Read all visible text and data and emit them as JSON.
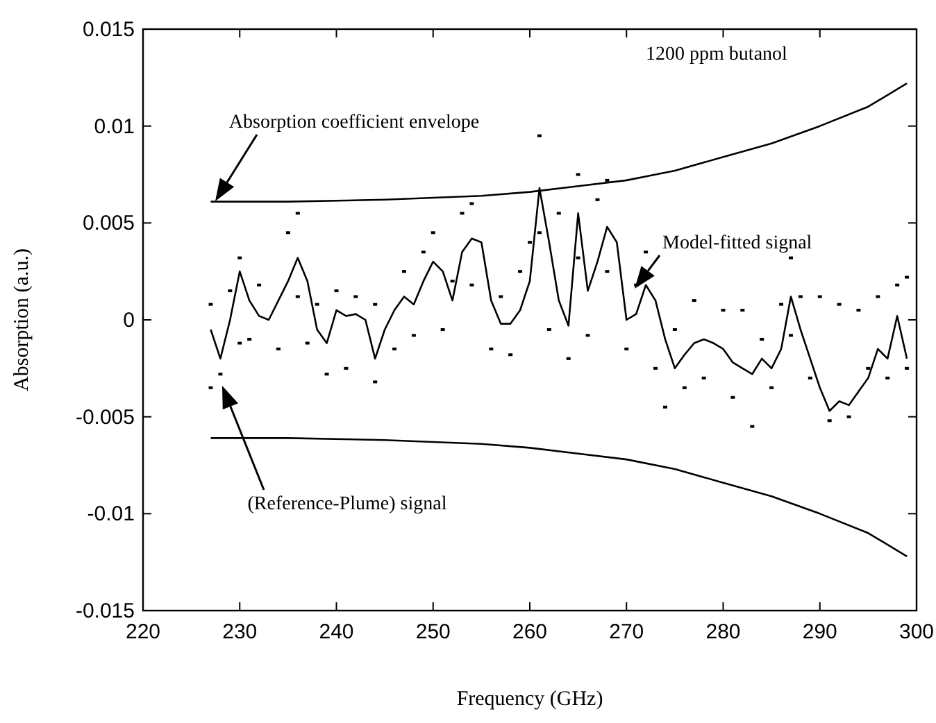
{
  "chart_data": {
    "type": "line",
    "xlabel": "Frequency (GHz)",
    "ylabel": "Absorption (a.u.)",
    "xlim": [
      220,
      300
    ],
    "xticks": [
      220,
      230,
      240,
      250,
      260,
      270,
      280,
      290,
      300
    ],
    "ylim": [
      -0.015,
      0.015
    ],
    "yticks": [
      -0.015,
      -0.01,
      -0.005,
      0,
      0.005,
      0.01,
      0.015
    ],
    "grid": false,
    "line_style": "solid",
    "marker": "none",
    "series": [
      {
        "color": "#000000",
        "x": [
          227,
          235,
          245,
          255,
          260,
          265,
          270,
          275,
          280,
          285,
          290,
          295,
          299
        ],
        "values": [
          0.0061,
          0.0061,
          0.0062,
          0.0064,
          0.0066,
          0.0069,
          0.0072,
          0.0077,
          0.0084,
          0.0091,
          0.01,
          0.011,
          0.0122
        ]
      },
      {
        "color": "#000000",
        "x": [
          227,
          235,
          245,
          255,
          260,
          265,
          270,
          275,
          280,
          285,
          290,
          295,
          299
        ],
        "values": [
          -0.0061,
          -0.0061,
          -0.0062,
          -0.0064,
          -0.0066,
          -0.0069,
          -0.0072,
          -0.0077,
          -0.0084,
          -0.0091,
          -0.01,
          -0.011,
          -0.0122
        ]
      },
      {
        "color": "#000000",
        "x": [
          227,
          228,
          229,
          230,
          231,
          232,
          233,
          234,
          235,
          236,
          237,
          238,
          239,
          240,
          241,
          242,
          243,
          244,
          245,
          246,
          247,
          248,
          249,
          250,
          251,
          252,
          253,
          254,
          255,
          256,
          257,
          258,
          259,
          260,
          261,
          262,
          263,
          264,
          265,
          266,
          267,
          268,
          269,
          270,
          271,
          272,
          273,
          274,
          275,
          276,
          277,
          278,
          279,
          280,
          281,
          282,
          283,
          284,
          285,
          286,
          287,
          288,
          289,
          290,
          291,
          292,
          293,
          294,
          295,
          296,
          297,
          298,
          299
        ],
        "values": [
          -0.0005,
          -0.002,
          0,
          0.0025,
          0.001,
          0.0002,
          0,
          0.001,
          0.002,
          0.0032,
          0.002,
          -0.0005,
          -0.0012,
          0.0005,
          0.0002,
          0.0003,
          0,
          -0.002,
          -0.0005,
          0.0005,
          0.0012,
          0.0008,
          0.002,
          0.003,
          0.0025,
          0.001,
          0.0035,
          0.0042,
          0.004,
          0.001,
          -0.0002,
          -0.0002,
          0.0005,
          0.002,
          0.0068,
          0.004,
          0.001,
          -0.0003,
          0.0055,
          0.0015,
          0.003,
          0.0048,
          0.004,
          0,
          0.0003,
          0.0018,
          0.001,
          -0.001,
          -0.0025,
          -0.0018,
          -0.0012,
          -0.001,
          -0.0012,
          -0.0015,
          -0.0022,
          -0.0025,
          -0.0028,
          -0.002,
          -0.0025,
          -0.0015,
          0.0012,
          -0.0005,
          -0.002,
          -0.0035,
          -0.0047,
          -0.0042,
          -0.0044,
          -0.0037,
          -0.003,
          -0.0015,
          -0.002,
          0.0002,
          -0.002
        ]
      },
      {
        "type": "scatter",
        "marker": "square",
        "color": "#000000",
        "x": [
          227,
          227,
          228,
          229,
          230,
          230,
          231,
          232,
          234,
          235,
          236,
          236,
          237,
          238,
          239,
          240,
          241,
          242,
          244,
          244,
          246,
          247,
          248,
          249,
          250,
          251,
          252,
          253,
          254,
          254,
          256,
          257,
          258,
          259,
          260,
          261,
          261,
          262,
          263,
          264,
          265,
          265,
          266,
          267,
          268,
          268,
          270,
          271,
          272,
          273,
          274,
          275,
          276,
          277,
          278,
          280,
          281,
          282,
          283,
          284,
          285,
          286,
          287,
          287,
          288,
          289,
          290,
          291,
          292,
          293,
          294,
          295,
          296,
          297,
          298,
          299,
          299
        ],
        "values": [
          0.0008,
          -0.0035,
          -0.0028,
          0.0015,
          0.0032,
          -0.0012,
          -0.001,
          0.0018,
          -0.0015,
          0.0045,
          0.0055,
          0.0012,
          -0.0012,
          0.0008,
          -0.0028,
          0.0015,
          -0.0025,
          0.0012,
          -0.0032,
          0.0008,
          -0.0015,
          0.0025,
          -0.0008,
          0.0035,
          0.0045,
          -0.0005,
          0.002,
          0.0055,
          0.006,
          0.0018,
          -0.0015,
          0.0012,
          -0.0018,
          0.0025,
          0.004,
          0.0095,
          0.0045,
          -0.0005,
          0.0055,
          -0.002,
          0.0075,
          0.0032,
          -0.0008,
          0.0062,
          0.0072,
          0.0025,
          -0.0015,
          0.0018,
          0.0035,
          -0.0025,
          -0.0045,
          -0.0005,
          -0.0035,
          0.001,
          -0.003,
          0.0005,
          -0.004,
          0.0005,
          -0.0055,
          -0.001,
          -0.0035,
          0.0008,
          0.0032,
          -0.0008,
          0.0012,
          -0.003,
          0.0012,
          -0.0052,
          0.0008,
          -0.005,
          0.0005,
          -0.0025,
          0.0012,
          -0.003,
          0.0018,
          0.0022,
          -0.0025
        ]
      }
    ],
    "annotations": [
      "1200 ppm butanol",
      "Absorption coefficient envelope",
      "Model-fitted signal",
      "(Reference-Plume) signal"
    ]
  }
}
